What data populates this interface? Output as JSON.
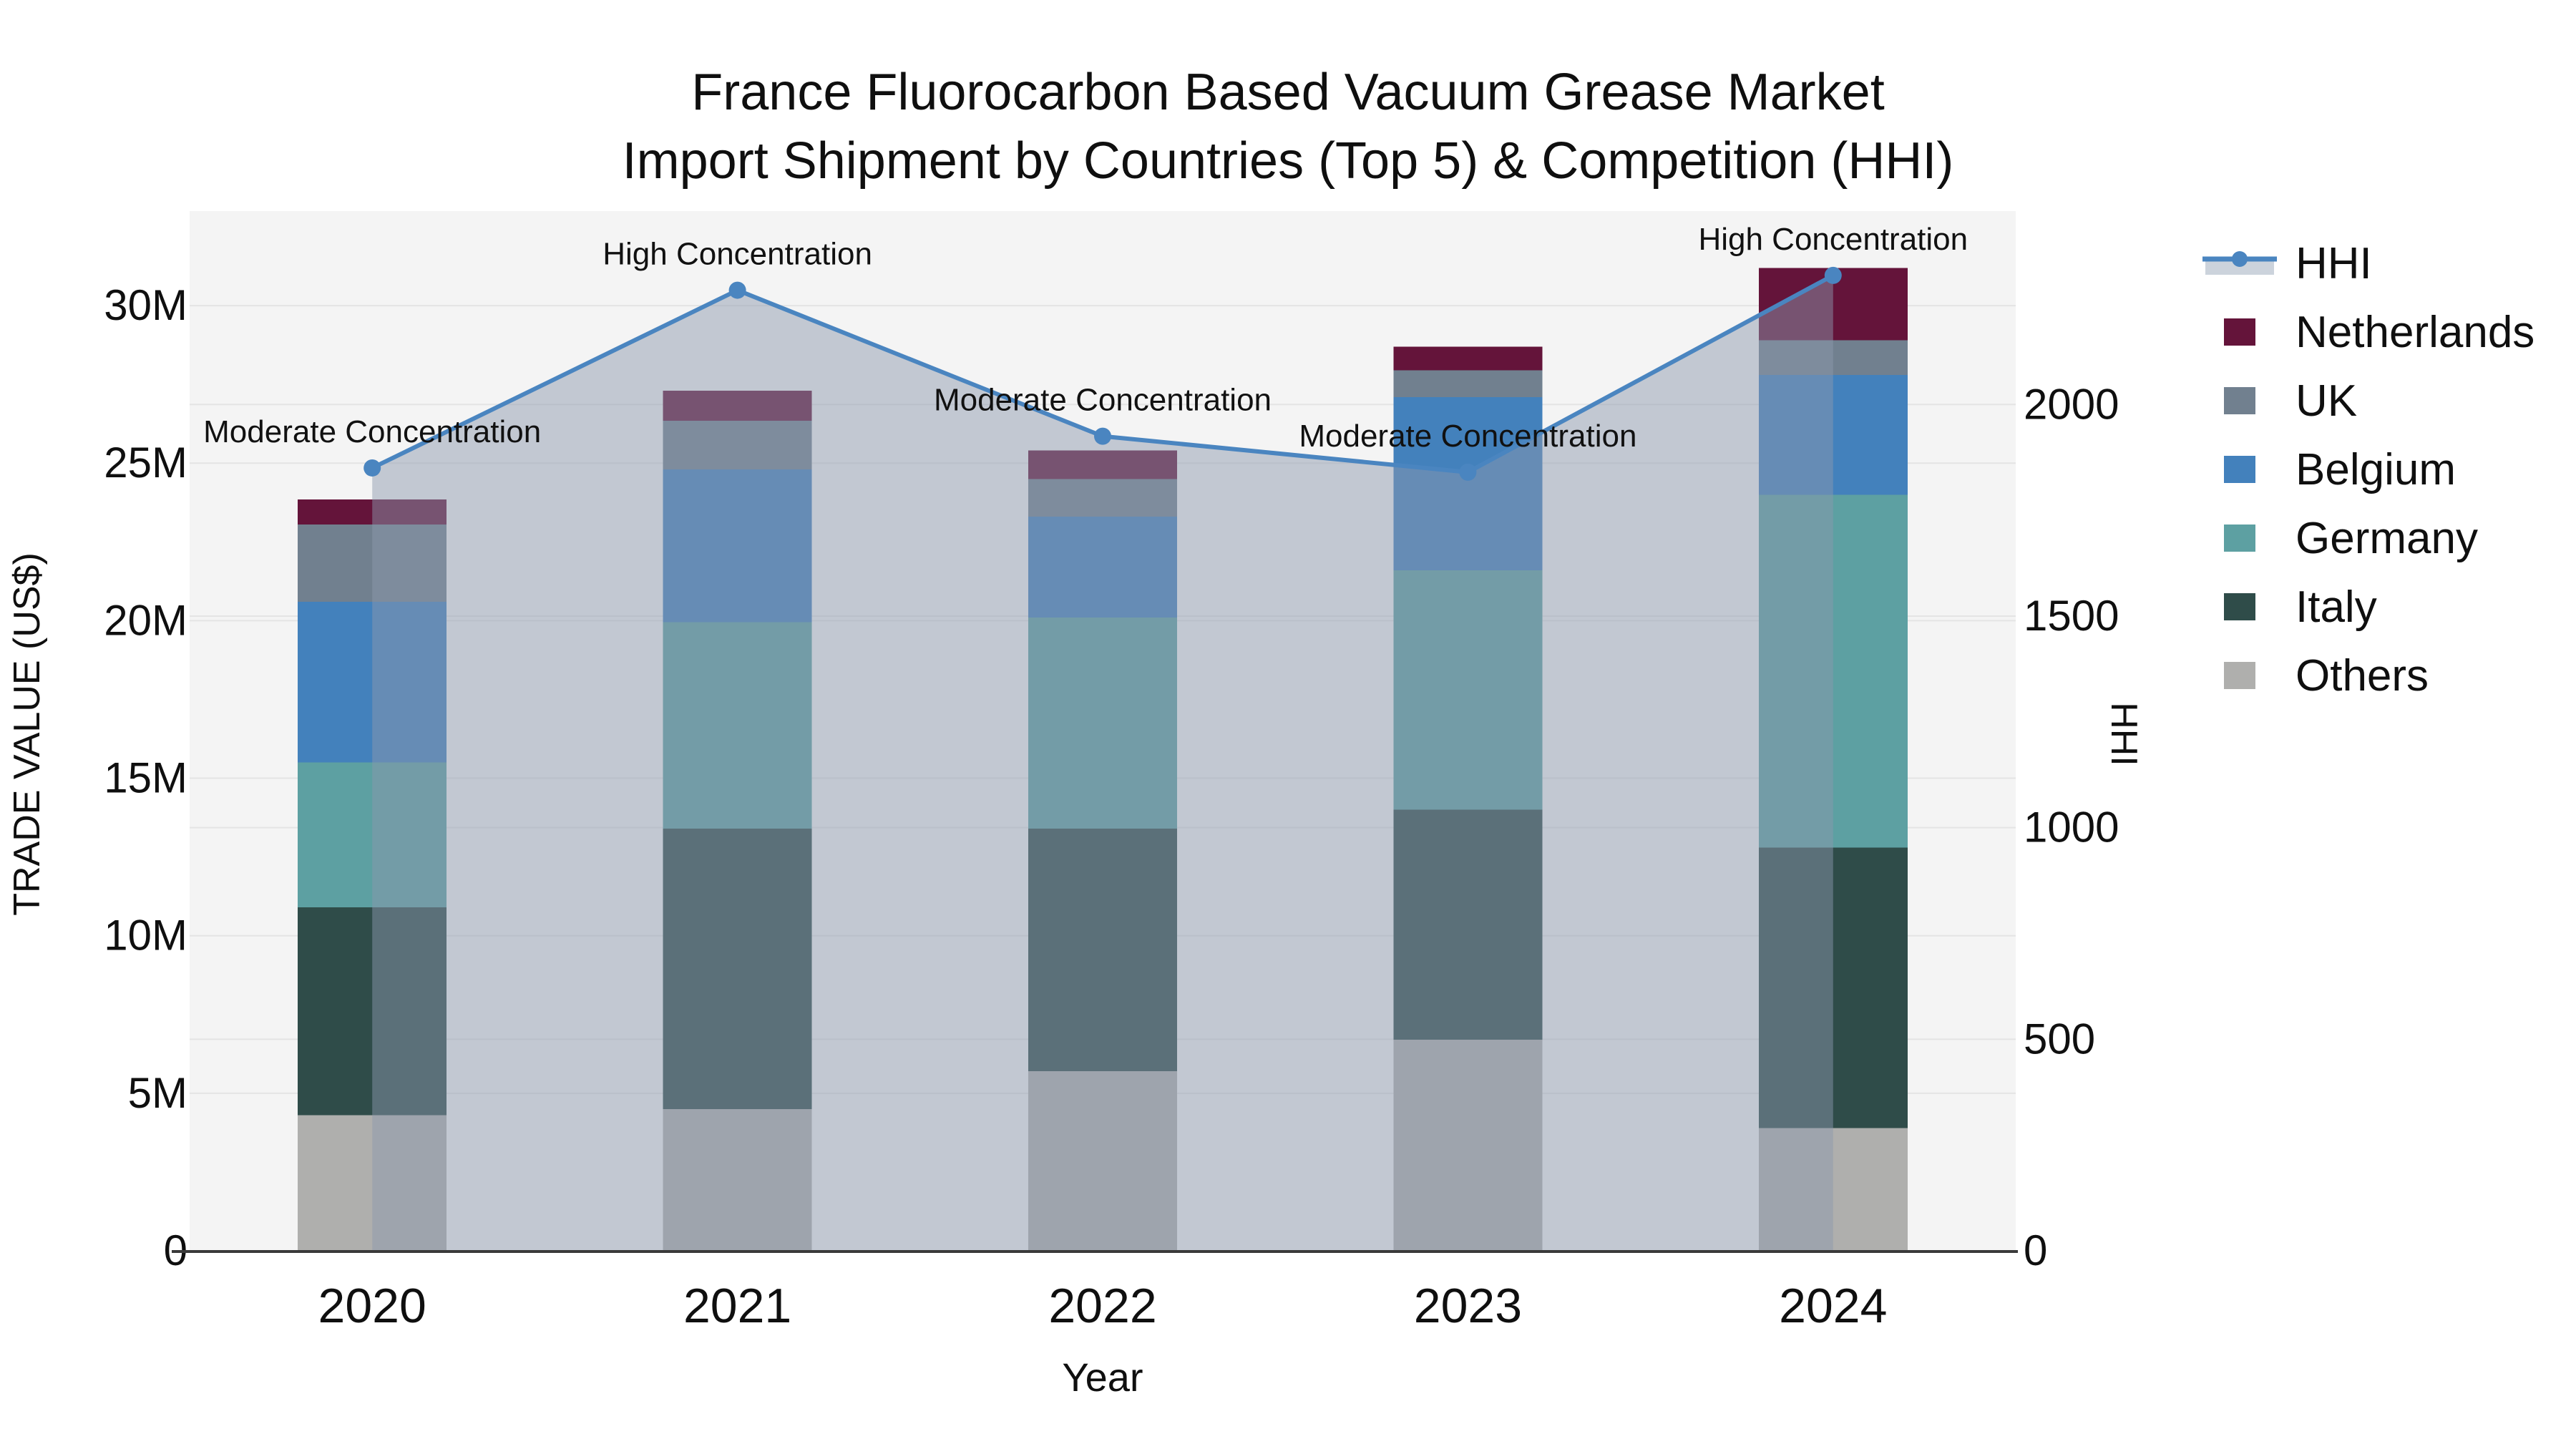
{
  "title": {
    "line1": "France Fluorocarbon Based Vacuum Grease Market",
    "line2": "Import Shipment by Countries (Top 5) & Competition (HHI)"
  },
  "colors": {
    "hhi_line": "#4A85C0",
    "hhi_fill": "rgba(139,152,173,0.48)",
    "netherlands": "#64143A",
    "uk": "#71808F",
    "belgium": "#4381BC",
    "germany": "#5DA0A2",
    "italy": "#2F4C49",
    "others": "#AFAFAD",
    "plot_bg": "#F4F4F4",
    "gridline": "#E4E4E4",
    "axis_line": "#3A3A3A"
  },
  "legend": [
    {
      "label": "HHI",
      "type": "line"
    },
    {
      "label": "Netherlands",
      "type": "swatch",
      "color": "#64143A"
    },
    {
      "label": "UK",
      "type": "swatch",
      "color": "#71808F"
    },
    {
      "label": "Belgium",
      "type": "swatch",
      "color": "#4381BC"
    },
    {
      "label": "Germany",
      "type": "swatch",
      "color": "#5DA0A2"
    },
    {
      "label": "Italy",
      "type": "swatch",
      "color": "#2F4C49"
    },
    {
      "label": "Others",
      "type": "swatch",
      "color": "#AFAFAD"
    }
  ],
  "chart_data": {
    "type": "combo_stacked_bar_line",
    "categories": [
      "2020",
      "2021",
      "2022",
      "2023",
      "2024"
    ],
    "bar_unit": "million US$",
    "series": [
      {
        "key": "others",
        "name": "Others",
        "color": "#AFAFAD",
        "values": [
          4.3,
          4.5,
          5.7,
          6.7,
          3.9
        ]
      },
      {
        "key": "italy",
        "name": "Italy",
        "color": "#2F4C49",
        "values": [
          6.6,
          8.9,
          7.7,
          7.3,
          8.9
        ]
      },
      {
        "key": "germany",
        "name": "Germany",
        "color": "#5DA0A2",
        "values": [
          4.6,
          6.55,
          6.7,
          7.6,
          11.2
        ]
      },
      {
        "key": "belgium",
        "name": "Belgium",
        "color": "#4381BC",
        "values": [
          5.1,
          4.85,
          3.2,
          5.5,
          3.8
        ]
      },
      {
        "key": "uk",
        "name": "UK",
        "color": "#71808F",
        "values": [
          2.45,
          1.55,
          1.2,
          0.85,
          1.1
        ]
      },
      {
        "key": "netherlands",
        "name": "Netherlands",
        "color": "#64143A",
        "values": [
          0.8,
          0.95,
          0.9,
          0.75,
          2.3
        ]
      }
    ],
    "stack_totals": [
      23.85,
      27.3,
      25.4,
      28.7,
      31.2
    ],
    "line_series": {
      "name": "HHI",
      "color": "#4A85C0",
      "fill": "rgba(139,152,173,0.48)",
      "values": [
        1850,
        2270,
        1925,
        1840,
        2305
      ]
    },
    "annotations": [
      {
        "category": "2020",
        "label": "Moderate Concentration"
      },
      {
        "category": "2021",
        "label": "High Concentration"
      },
      {
        "category": "2022",
        "label": "Moderate Concentration"
      },
      {
        "category": "2023",
        "label": "Moderate Concentration"
      },
      {
        "category": "2024",
        "label": "High Concentration"
      }
    ],
    "x_axis": {
      "label": "Year"
    },
    "y_left": {
      "label": "TRADE VALUE (US$)",
      "tick_values": [
        0,
        5,
        10,
        15,
        20,
        25,
        30
      ],
      "tick_labels": [
        "0",
        "5M",
        "10M",
        "15M",
        "20M",
        "25M",
        "30M"
      ],
      "range": [
        0,
        33
      ]
    },
    "y_right": {
      "label": "HHI",
      "tick_values": [
        0,
        500,
        1000,
        1500,
        2000
      ],
      "tick_labels": [
        "0",
        "500",
        "1000",
        "1500",
        "2000"
      ],
      "range": [
        0,
        2457
      ]
    },
    "grid": true,
    "legend_position": "right"
  }
}
